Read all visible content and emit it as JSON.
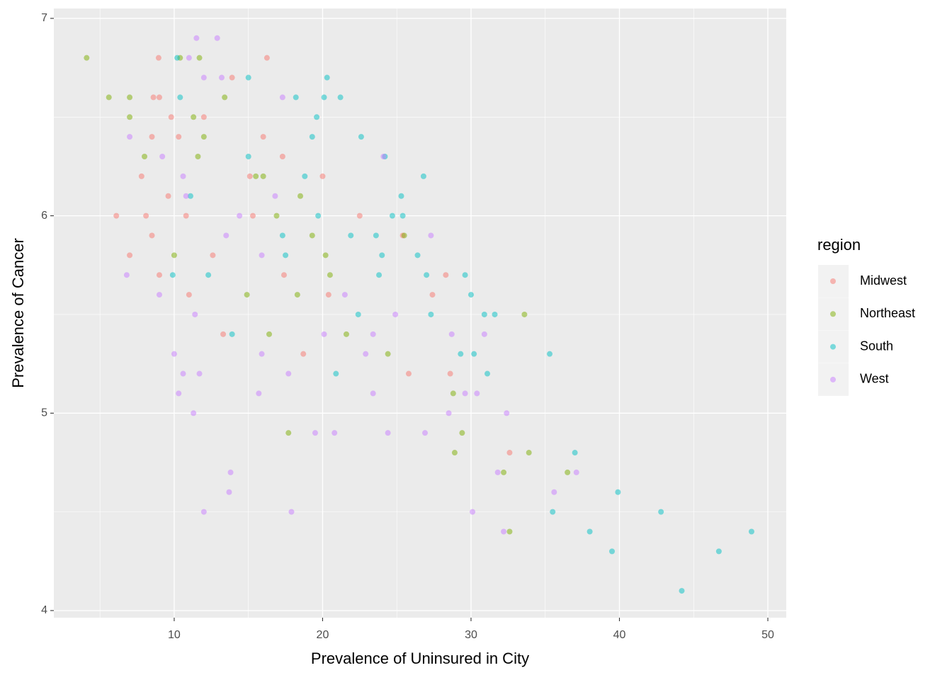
{
  "chart_data": {
    "type": "scatter",
    "x_label": "Prevalence of Uninsured in City",
    "y_label": "Prevalence of Cancer",
    "legend_title": "region",
    "legend_position": "right",
    "grid": true,
    "xlim": [
      1.89,
      51.24
    ],
    "ylim": [
      3.964,
      7.05
    ],
    "xticks": [
      10,
      20,
      30,
      40,
      50
    ],
    "yticks": [
      4,
      5,
      6,
      7
    ],
    "xminor": [
      5,
      15,
      25,
      35,
      45
    ],
    "yminor": [
      4.5,
      5.5,
      6.5
    ],
    "series": [
      {
        "name": "Midwest",
        "color": "#F8766D",
        "x": [
          8.95,
          16.25,
          8.6,
          9.0,
          9.8,
          12.0,
          13.9,
          6.1,
          8.1,
          8.5,
          7.0,
          9.0,
          11.0,
          13.3,
          18.7,
          25.8,
          28.6,
          32.6,
          28.3,
          27.4,
          20.0,
          17.3,
          16.0,
          10.3,
          7.8,
          9.6,
          10.8,
          20.4,
          22.5,
          25.4,
          15.3,
          12.6,
          17.4,
          8.5,
          15.1
        ],
        "values": [
          6.8,
          6.8,
          6.6,
          6.6,
          6.5,
          6.5,
          6.7,
          6.0,
          6.0,
          5.9,
          5.8,
          5.7,
          5.6,
          5.4,
          5.3,
          5.2,
          5.2,
          4.8,
          5.7,
          5.6,
          6.2,
          6.3,
          6.4,
          6.4,
          6.2,
          6.1,
          6.0,
          5.6,
          6.0,
          5.9,
          6.0,
          5.8,
          5.7,
          6.4,
          6.2
        ]
      },
      {
        "name": "Northeast",
        "color": "#7CAE00",
        "x": [
          4.1,
          5.6,
          7.0,
          7.0,
          10.4,
          11.7,
          13.4,
          11.3,
          8.0,
          11.6,
          10.0,
          14.9,
          16.4,
          21.6,
          24.4,
          17.7,
          29.4,
          28.9,
          33.9,
          33.6,
          32.2,
          32.6,
          36.5,
          28.8,
          25.5,
          19.3,
          20.2,
          12.0,
          15.5,
          16.9,
          18.5,
          20.5,
          18.3,
          16.0
        ],
        "values": [
          6.8,
          6.6,
          6.6,
          6.5,
          6.8,
          6.8,
          6.6,
          6.5,
          6.3,
          6.3,
          5.8,
          5.6,
          5.4,
          5.4,
          5.3,
          4.9,
          4.9,
          4.8,
          4.8,
          5.5,
          4.7,
          4.4,
          4.7,
          5.1,
          5.9,
          5.9,
          5.8,
          6.4,
          6.2,
          6.0,
          6.1,
          5.7,
          5.6,
          6.2
        ]
      },
      {
        "name": "South",
        "color": "#00BFC4",
        "x": [
          10.2,
          15.0,
          20.3,
          10.4,
          18.2,
          20.1,
          21.2,
          19.3,
          22.6,
          24.2,
          26.8,
          25.3,
          24.7,
          25.4,
          23.6,
          21.9,
          24.0,
          27.0,
          29.6,
          30.0,
          30.9,
          31.6,
          29.3,
          30.2,
          31.1,
          35.3,
          37.0,
          35.5,
          38.0,
          39.5,
          39.9,
          42.8,
          44.2,
          46.7,
          48.9,
          20.9,
          13.9,
          9.9,
          12.3,
          11.1,
          19.7,
          17.5,
          22.4,
          27.3,
          18.8,
          15.0,
          17.3,
          23.8,
          26.4,
          19.6
        ],
        "values": [
          6.8,
          6.7,
          6.7,
          6.6,
          6.6,
          6.6,
          6.6,
          6.4,
          6.4,
          6.3,
          6.2,
          6.1,
          6.0,
          6.0,
          5.9,
          5.9,
          5.8,
          5.7,
          5.7,
          5.6,
          5.5,
          5.5,
          5.3,
          5.3,
          5.2,
          5.3,
          4.8,
          4.5,
          4.4,
          4.3,
          4.6,
          4.5,
          4.1,
          4.3,
          4.4,
          5.2,
          5.4,
          5.7,
          5.7,
          6.1,
          6.0,
          5.8,
          5.5,
          5.5,
          6.2,
          6.3,
          5.9,
          5.7,
          5.8,
          6.5
        ]
      },
      {
        "name": "West",
        "color": "#C77CFF",
        "x": [
          11.5,
          12.9,
          11.0,
          12.0,
          13.2,
          7.0,
          6.8,
          9.0,
          10.0,
          10.3,
          11.3,
          10.6,
          11.7,
          13.8,
          13.7,
          12.0,
          17.9,
          19.5,
          20.8,
          24.4,
          26.9,
          30.1,
          31.8,
          32.2,
          32.4,
          35.6,
          37.1,
          28.5,
          29.6,
          30.4,
          30.9,
          28.7,
          23.4,
          22.9,
          23.4,
          27.3,
          20.1,
          15.9,
          15.7,
          17.7,
          17.3,
          24.1,
          10.6,
          9.2,
          13.5,
          15.9,
          21.5,
          24.9,
          14.4,
          10.8,
          11.4,
          16.8
        ],
        "values": [
          6.9,
          6.9,
          6.8,
          6.7,
          6.7,
          6.4,
          5.7,
          5.6,
          5.3,
          5.1,
          5.0,
          5.2,
          5.2,
          4.7,
          4.6,
          4.5,
          4.5,
          4.9,
          4.9,
          4.9,
          4.9,
          4.5,
          4.7,
          4.4,
          5.0,
          4.6,
          4.7,
          5.0,
          5.1,
          5.1,
          5.4,
          5.4,
          5.1,
          5.3,
          5.4,
          5.9,
          5.4,
          5.3,
          5.1,
          5.2,
          6.6,
          6.3,
          6.2,
          6.3,
          5.9,
          5.8,
          5.6,
          5.5,
          6.0,
          6.1,
          5.5,
          6.1
        ]
      }
    ]
  }
}
